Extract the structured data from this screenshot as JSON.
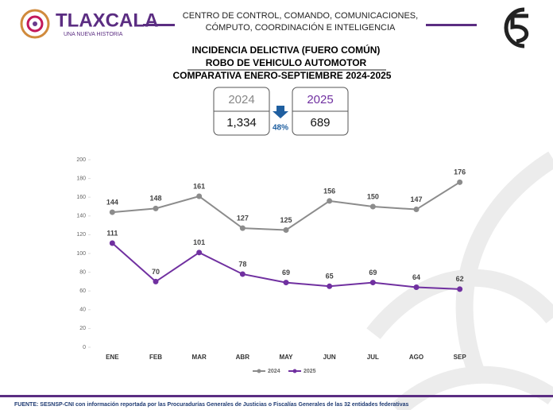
{
  "header": {
    "brand": "TLAXCALA",
    "tagline": "UNA NUEVA HISTORIA",
    "office": [
      "CENTRO DE CONTROL, COMANDO, COMUNICACIONES,",
      "CÓMPUTO, COORDINACIÓN E INTELIGENCIA"
    ]
  },
  "titles": [
    "INCIDENCIA DELICTIVA (FUERO COMÚN)",
    "ROBO DE VEHICULO AUTOMOTOR",
    "COMPARATIVA ENERO-SEPTIEMBRE 2024-2025"
  ],
  "summary": {
    "items": [
      {
        "year": "2024",
        "total": "1,334"
      },
      {
        "year": "2025",
        "total": "689"
      }
    ],
    "change": "48%"
  },
  "chart_data": {
    "type": "line",
    "categories": [
      "ENE",
      "FEB",
      "MAR",
      "ABR",
      "MAY",
      "JUN",
      "JUL",
      "AGO",
      "SEP"
    ],
    "series": [
      {
        "name": "2024",
        "color": "#8c8c8c",
        "values": [
          144,
          148,
          161,
          127,
          125,
          156,
          150,
          147,
          176
        ]
      },
      {
        "name": "2025",
        "color": "#7030a0",
        "values": [
          111,
          70,
          101,
          78,
          69,
          65,
          69,
          64,
          62
        ]
      }
    ],
    "ylim": [
      0,
      200
    ],
    "yticks": [
      0,
      20,
      40,
      60,
      80,
      100,
      120,
      140,
      160,
      180,
      200
    ],
    "grid": false,
    "legend": "bottom"
  },
  "footer": "FUENTE: SESNSP-CNI con información reportada por las Procuradurías Generales de Justicias o Fiscalías Generales de las 32 entidades federativas"
}
